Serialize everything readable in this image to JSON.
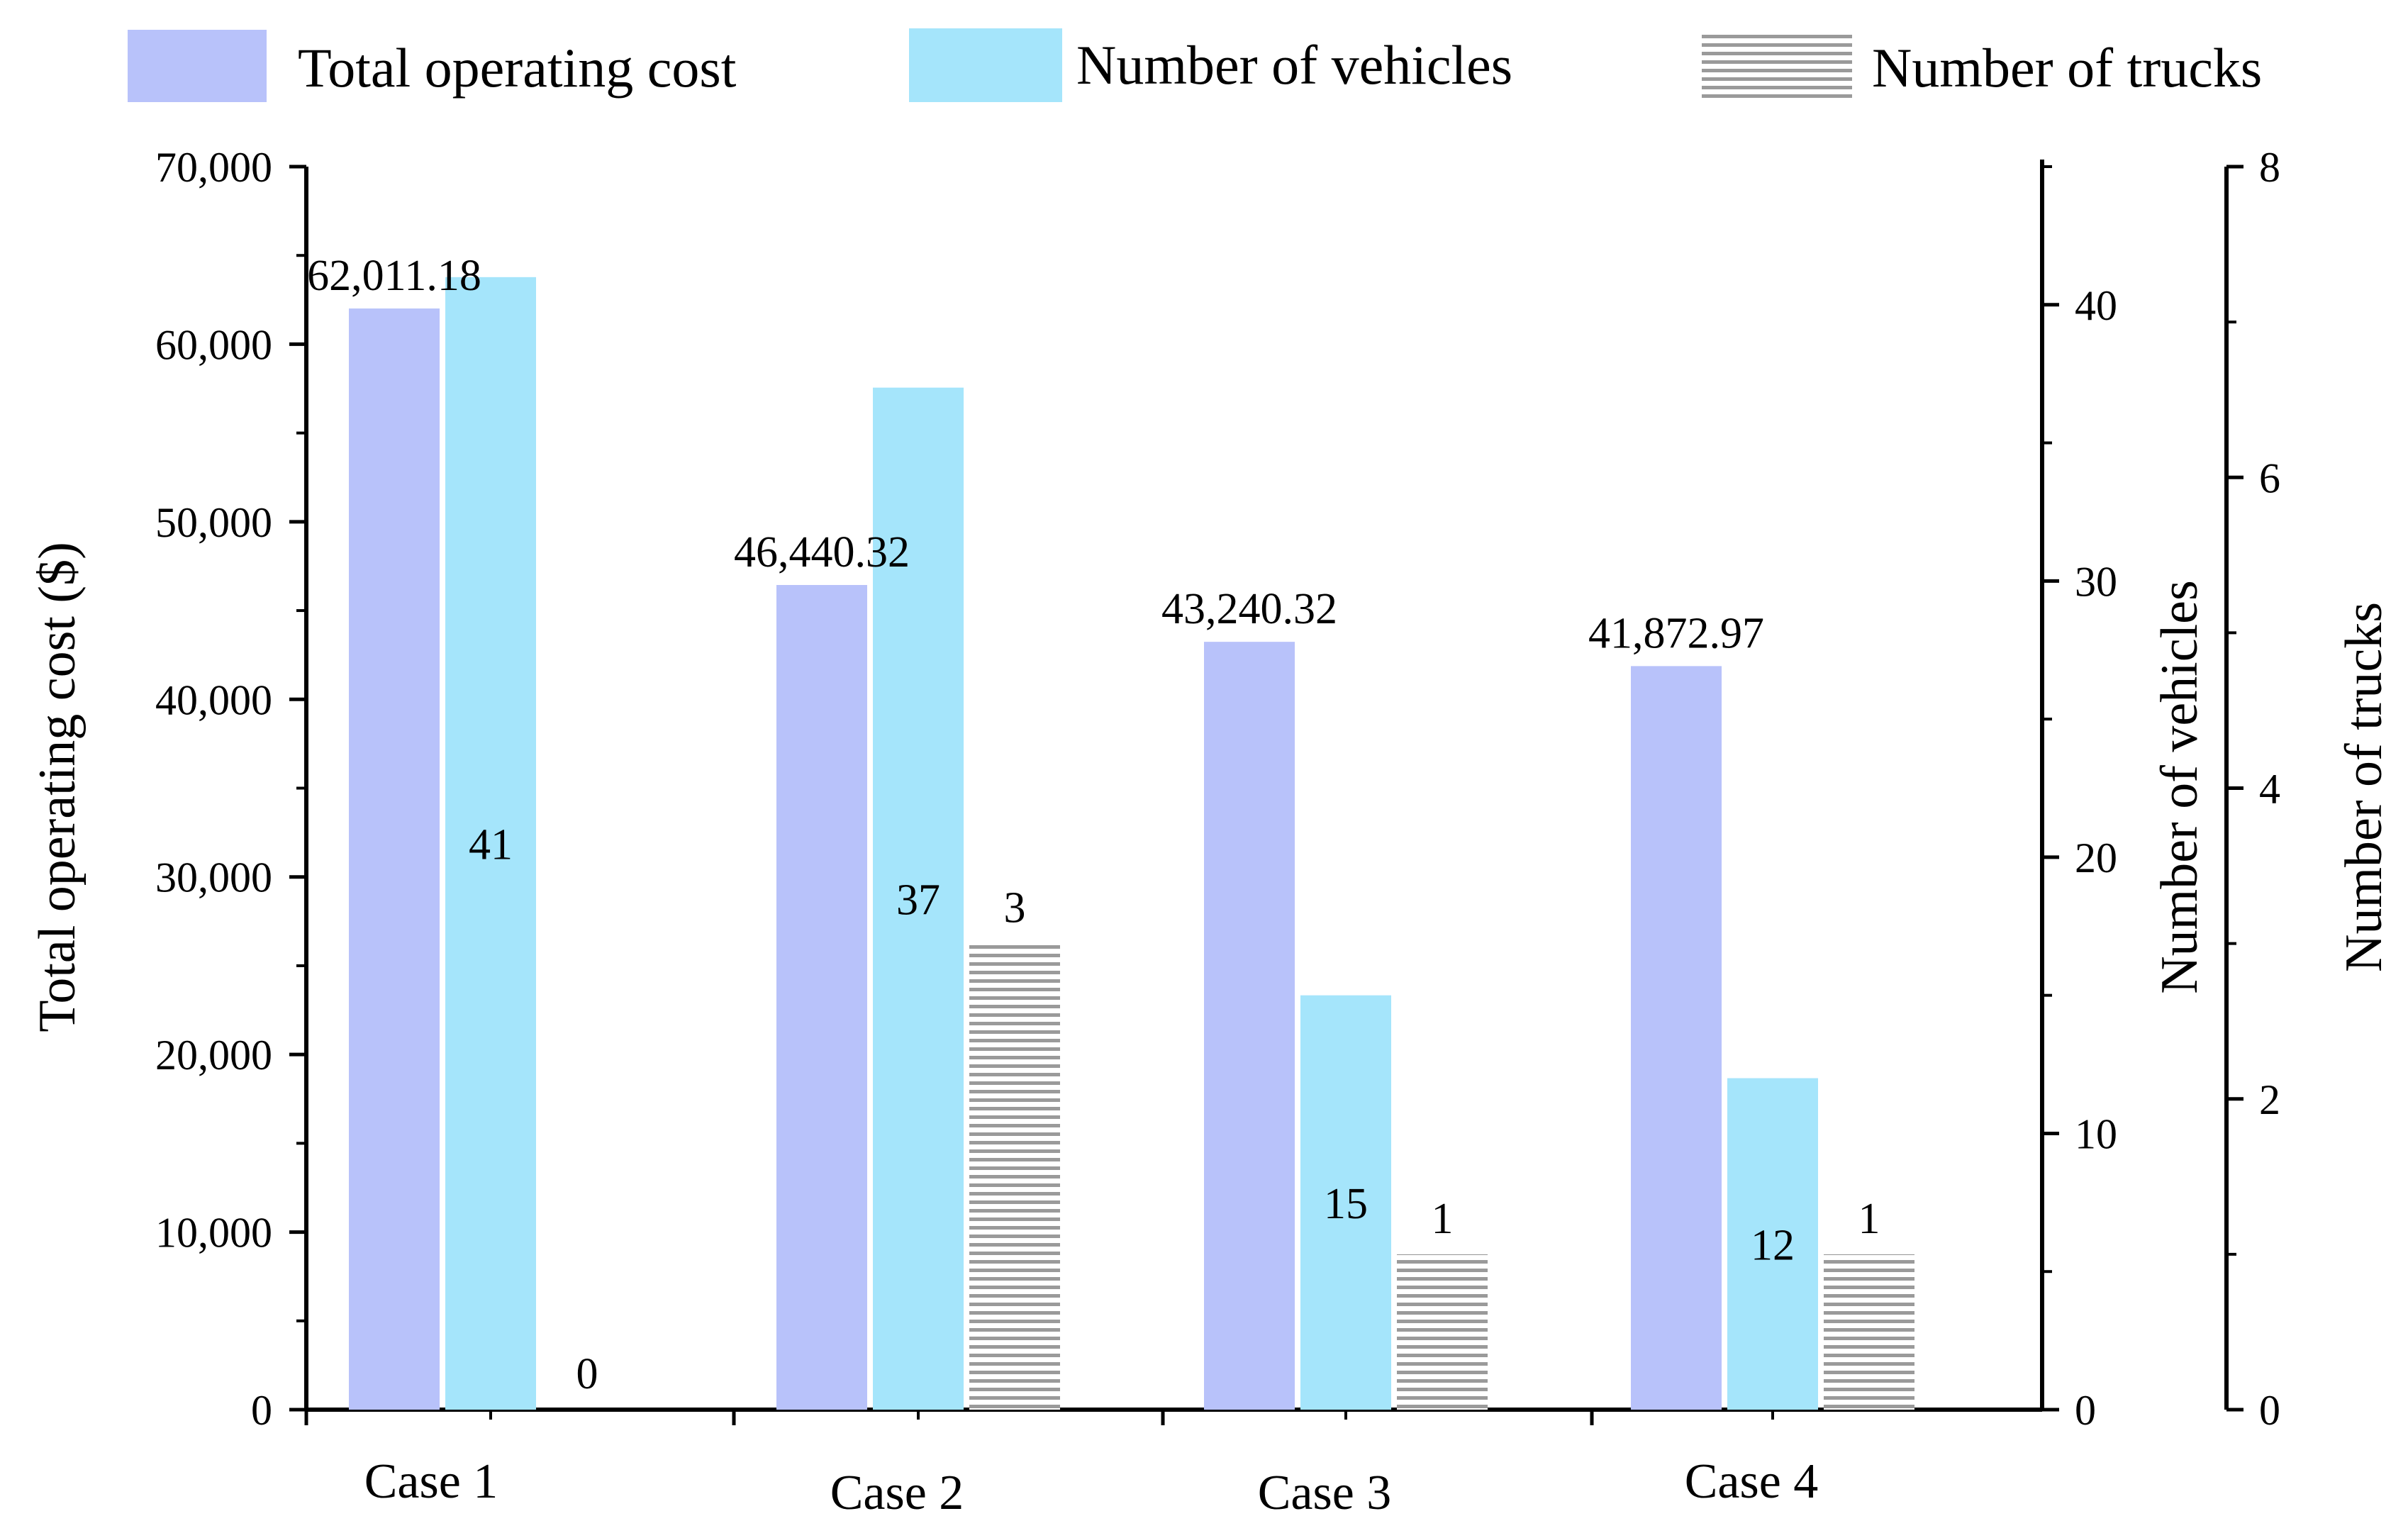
{
  "chart_data": {
    "type": "bar",
    "title": "",
    "categories": [
      "Case 1",
      "Case 2",
      "Case 3",
      "Case 4"
    ],
    "series": [
      {
        "name": "Total operating cost",
        "axis": "left",
        "values": [
          62011.18,
          46440.32,
          43240.32,
          41872.97
        ],
        "labels": [
          "62,011.18",
          "46,440.32",
          "43,240.32",
          "41,872.97"
        ],
        "label_position": "above",
        "color": "#b8c2fa"
      },
      {
        "name": "Number of vehicles",
        "axis": "right1",
        "values": [
          41,
          37,
          15,
          12
        ],
        "labels": [
          "41",
          "37",
          "15",
          "12"
        ],
        "label_position": "inside",
        "color": "#a5e5fb"
      },
      {
        "name": "Number of trucks",
        "axis": "right2",
        "values": [
          0,
          3,
          1,
          1
        ],
        "labels": [
          "0",
          "3",
          "1",
          "1"
        ],
        "label_position": "above",
        "color": "#9a9a9a",
        "pattern": "horizontal-lines"
      }
    ],
    "axes": {
      "left": {
        "label": "Total operating cost ($)",
        "ylim": [
          0,
          70000
        ],
        "ticks": [
          0,
          10000,
          20000,
          30000,
          40000,
          50000,
          60000,
          70000
        ],
        "tick_labels": [
          "0",
          "10,000",
          "20,000",
          "30,000",
          "40,000",
          "50,000",
          "60,000",
          "70,000"
        ]
      },
      "right1": {
        "label": "Number of vehicles",
        "ylim": [
          0,
          45
        ],
        "ticks": [
          0,
          10,
          20,
          30,
          40
        ],
        "tick_labels": [
          "0",
          "10",
          "20",
          "30",
          "40"
        ]
      },
      "right2": {
        "label": "Number of trucks",
        "ylim": [
          0,
          8
        ],
        "ticks": [
          0,
          2,
          4,
          6,
          8
        ],
        "tick_labels": [
          "0",
          "2",
          "4",
          "6",
          "8"
        ]
      }
    },
    "legend": {
      "placement": "top",
      "entries": [
        "Total operating cost",
        "Number of vehicles",
        "Number of trucks"
      ]
    },
    "grid": false
  }
}
